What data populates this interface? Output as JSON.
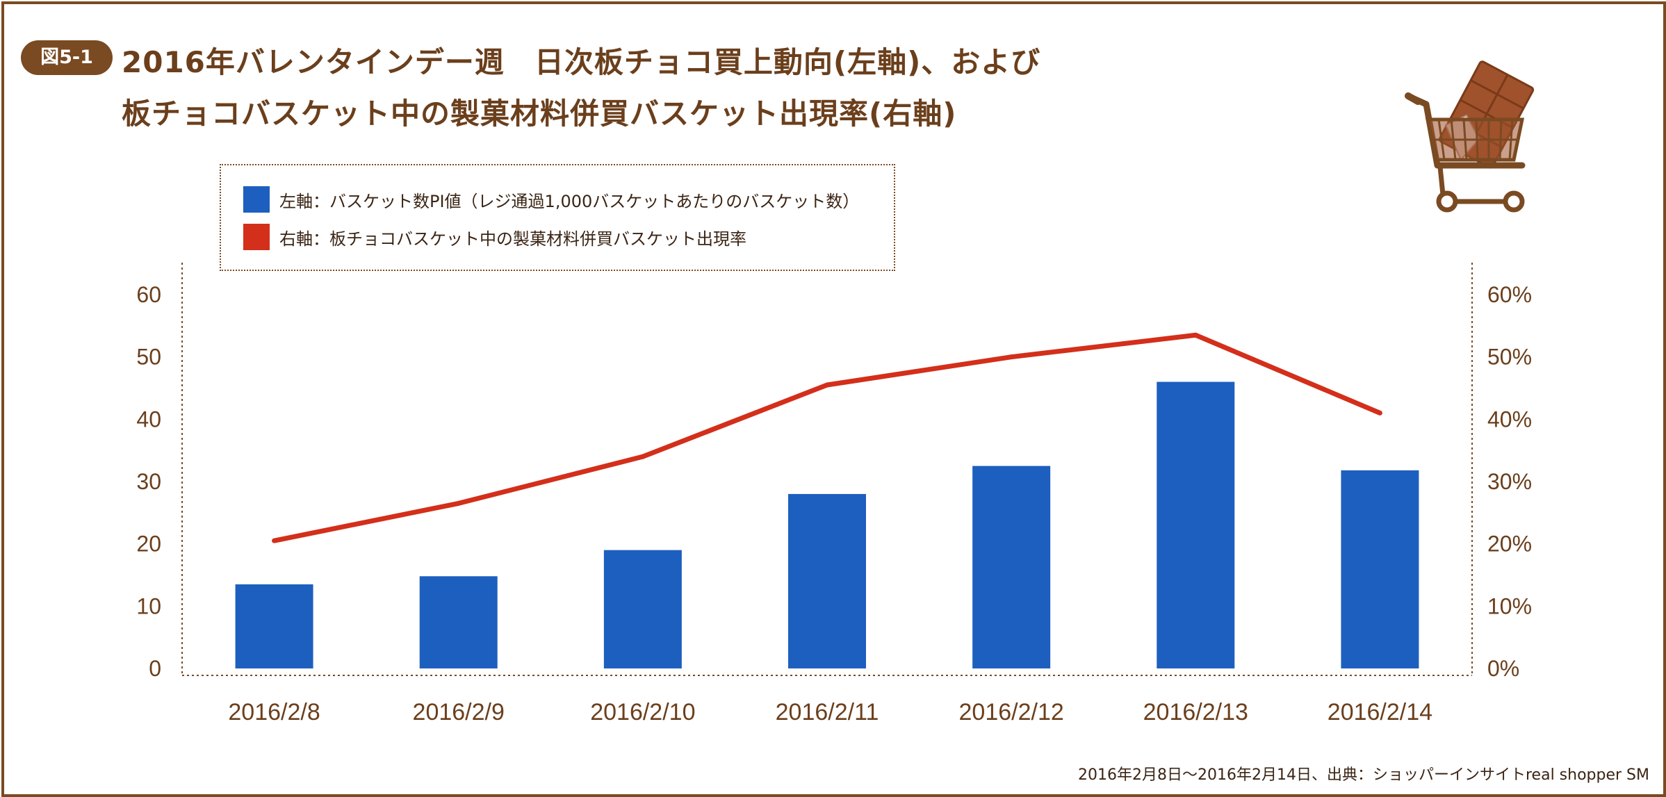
{
  "badge": "図5-1",
  "title_line1": "2016年バレンタインデー週　日次板チョコ買上動向(左軸)、および",
  "title_line2": "板チョコバスケット中の製菓材料併買バスケット出現率(右軸)",
  "legend": [
    {
      "label": "左軸：バスケット数PI値（レジ通過1,000バスケットあたりのバスケット数）",
      "color": "#1d5fbf"
    },
    {
      "label": "右軸：板チョコバスケット中の製菓材料併買バスケット出現率",
      "color": "#d32f1a"
    }
  ],
  "footnote": "2016年2月8日～2016年2月14日、出典：ショッパーインサイトreal shopper SM",
  "colors": {
    "brown": "#7a4a22",
    "bar": "#1d5fbf",
    "line": "#d32f1a",
    "chocolate": "#a0522d"
  },
  "icon": "shopping-cart-with-chocolate-icon",
  "chart_data": {
    "type": "bar",
    "categories": [
      "2016/2/8",
      "2016/2/9",
      "2016/2/10",
      "2016/2/11",
      "2016/2/12",
      "2016/2/13",
      "2016/2/14"
    ],
    "left_axis": {
      "ylim": [
        0,
        60
      ],
      "ticks": [
        "0",
        "10",
        "20",
        "30",
        "40",
        "50",
        "60"
      ]
    },
    "right_axis": {
      "ylim": [
        0,
        60
      ],
      "ticks": [
        "0%",
        "10%",
        "20%",
        "30%",
        "40%",
        "50%",
        "60%"
      ]
    },
    "series": [
      {
        "type": "bar",
        "axis": "left",
        "values": [
          13.5,
          14.8,
          19,
          28,
          32.5,
          46,
          31.8
        ]
      },
      {
        "type": "line",
        "axis": "right",
        "unit": "%",
        "values": [
          20.5,
          26.5,
          34,
          45.5,
          50,
          53.5,
          41
        ]
      }
    ],
    "grid": false,
    "legend_position": "top"
  }
}
